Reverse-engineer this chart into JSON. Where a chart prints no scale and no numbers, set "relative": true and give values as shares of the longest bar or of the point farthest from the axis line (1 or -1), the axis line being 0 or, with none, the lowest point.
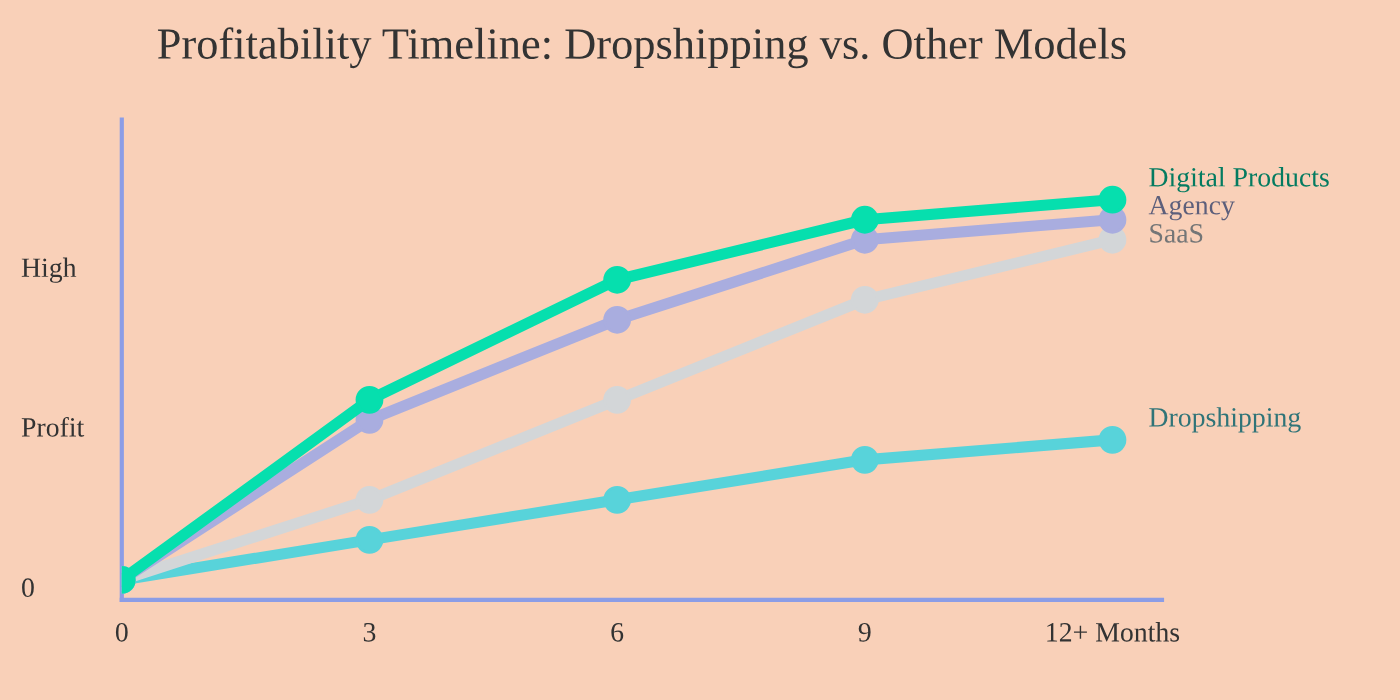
{
  "chart_data": {
    "type": "line",
    "title": "Profitability Timeline: Dropshipping vs. Other Models",
    "x": [
      0,
      3,
      6,
      9,
      12
    ],
    "relative": true,
    "series": [
      {
        "name": "Digital Products",
        "color": "#06dfae",
        "values": [
          0.05,
          0.5,
          0.8,
          0.95,
          1
        ]
      },
      {
        "name": "Agency",
        "color": "#a9addf",
        "values": [
          0.05,
          0.45,
          0.7,
          0.9,
          0.95
        ]
      },
      {
        "name": "SaaS",
        "color": "#d3d6d8",
        "values": [
          0.05,
          0.25,
          0.5,
          0.75,
          0.9
        ]
      },
      {
        "name": "Dropshipping",
        "color": "#58d3da",
        "values": [
          0.05,
          0.15,
          0.25,
          0.35,
          0.4
        ]
      }
    ],
    "xlim": [
      0,
      12.6
    ],
    "xticks": [
      0,
      3,
      6,
      9,
      {
        "value": 12,
        "label": "12+ Months"
      }
    ],
    "ylabel": "Profit",
    "annotations": [
      "High",
      "0"
    ],
    "marker": "circle",
    "line_style": "solid",
    "grid": false,
    "legend": false
  }
}
